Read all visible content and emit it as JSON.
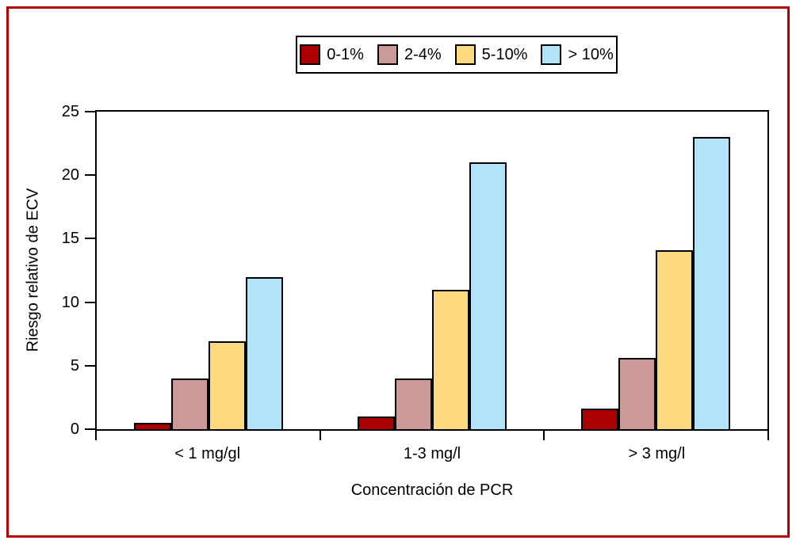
{
  "figure": {
    "border_color": "#b40000",
    "background": "#ffffff",
    "axis_color": "#000000"
  },
  "chart_data": {
    "type": "bar",
    "title": "",
    "xlabel": "Concentración de PCR",
    "ylabel": "Riesgo relativo de ECV",
    "categories": [
      "< 1 mg/gl",
      "1-3 mg/l",
      "> 3 mg/l"
    ],
    "series": [
      {
        "name": "0-1%",
        "color": "#aa0000",
        "values": [
          0.5,
          1.0,
          1.6
        ]
      },
      {
        "name": "2-4%",
        "color": "#cc9999",
        "values": [
          4.0,
          4.0,
          5.6
        ]
      },
      {
        "name": "5-10%",
        "color": "#fcd87f",
        "values": [
          6.9,
          11.0,
          14.1
        ]
      },
      {
        "name": "> 10%",
        "color": "#b3e3f9",
        "values": [
          12.0,
          21.0,
          23.0
        ]
      }
    ],
    "ylim": [
      0,
      25
    ],
    "yticks": [
      0,
      5,
      10,
      15,
      20,
      25
    ],
    "grid": false,
    "legend_position": "top-center",
    "bar_border_color": "#000000"
  }
}
